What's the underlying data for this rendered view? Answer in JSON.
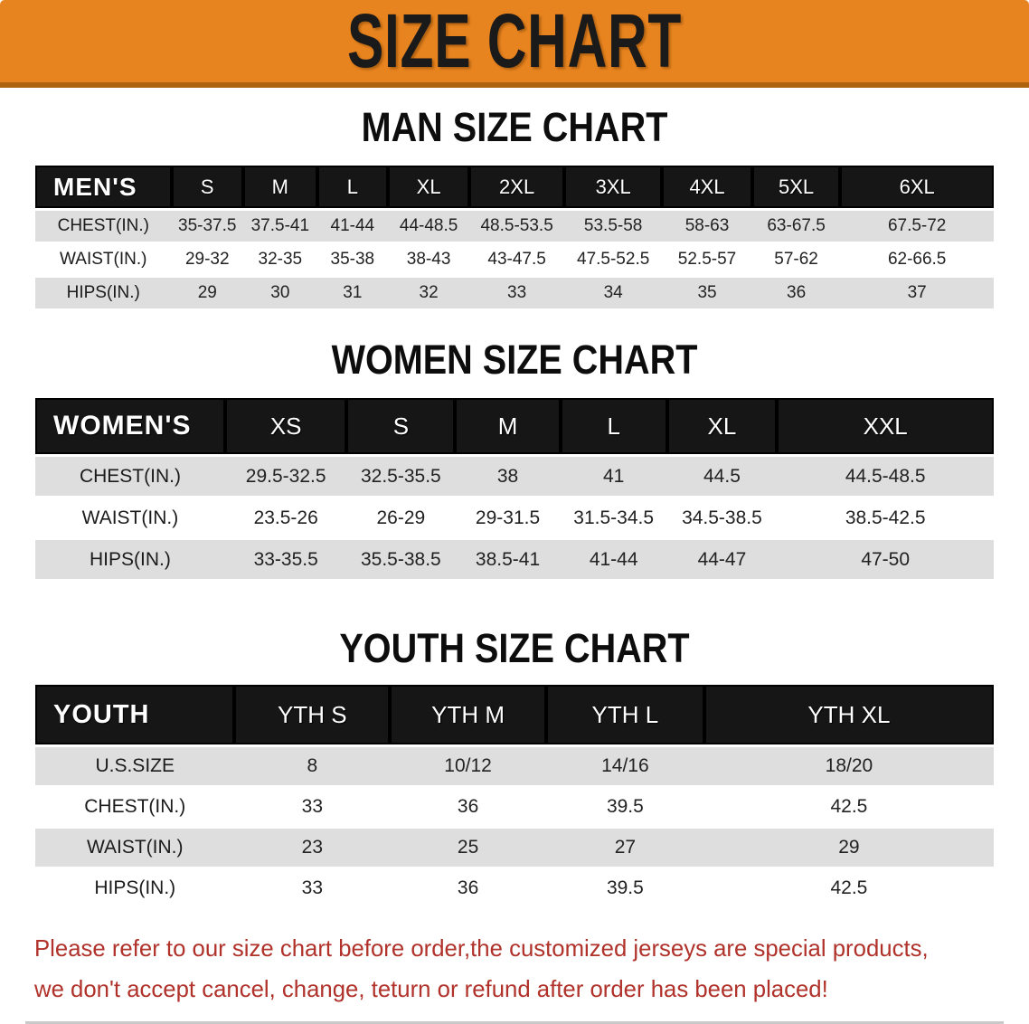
{
  "banner": {
    "title": "SIZE CHART",
    "bg_color": "#E8841F",
    "edge_color": "#AE6310",
    "text_color": "#1a1a1a"
  },
  "colors": {
    "header_bar": "#161616",
    "header_text": "#FFFFFF",
    "row_gray": "#DEDEDE",
    "row_white": "#FFFFFF",
    "disclaimer_red": "#B0322A"
  },
  "sections": [
    {
      "key": "men",
      "heading": "MAN SIZE CHART",
      "header_label": "MEN'S",
      "columns": [
        "S",
        "M",
        "L",
        "XL",
        "2XL",
        "3XL",
        "4XL",
        "5XL",
        "6XL"
      ],
      "rows": [
        {
          "label": "CHEST(IN.)",
          "values": [
            "35-37.5",
            "37.5-41",
            "41-44",
            "44-48.5",
            "48.5-53.5",
            "53.5-58",
            "58-63",
            "63-67.5",
            "67.5-72"
          ]
        },
        {
          "label": "WAIST(IN.)",
          "values": [
            "29-32",
            "32-35",
            "35-38",
            "38-43",
            "43-47.5",
            "47.5-52.5",
            "52.5-57",
            "57-62",
            "62-66.5"
          ]
        },
        {
          "label": "HIPS(IN.)",
          "values": [
            "29",
            "30",
            "31",
            "32",
            "33",
            "34",
            "35",
            "36",
            "37"
          ]
        }
      ]
    },
    {
      "key": "women",
      "heading": "WOMEN SIZE CHART",
      "header_label": "WOMEN'S",
      "columns": [
        "XS",
        "S",
        "M",
        "L",
        "XL",
        "XXL"
      ],
      "rows": [
        {
          "label": "CHEST(IN.)",
          "values": [
            "29.5-32.5",
            "32.5-35.5",
            "38",
            "41",
            "44.5",
            "44.5-48.5"
          ]
        },
        {
          "label": "WAIST(IN.)",
          "values": [
            "23.5-26",
            "26-29",
            "29-31.5",
            "31.5-34.5",
            "34.5-38.5",
            "38.5-42.5"
          ]
        },
        {
          "label": "HIPS(IN.)",
          "values": [
            "33-35.5",
            "35.5-38.5",
            "38.5-41",
            "41-44",
            "44-47",
            "47-50"
          ]
        }
      ]
    },
    {
      "key": "youth",
      "heading": "YOUTH SIZE CHART",
      "header_label": "YOUTH",
      "columns": [
        "YTH S",
        "YTH M",
        "YTH L",
        "YTH XL"
      ],
      "rows": [
        {
          "label": "U.S.SIZE",
          "values": [
            "8",
            "10/12",
            "14/16",
            "18/20"
          ]
        },
        {
          "label": "CHEST(IN.)",
          "values": [
            "33",
            "36",
            "39.5",
            "42.5"
          ]
        },
        {
          "label": "WAIST(IN.)",
          "values": [
            "23",
            "25",
            "27",
            "29"
          ]
        },
        {
          "label": "HIPS(IN.)",
          "values": [
            "33",
            "36",
            "39.5",
            "42.5"
          ]
        }
      ]
    }
  ],
  "disclaimer": {
    "line1": "Please refer to our size chart before order,the customized jerseys are special products,",
    "line2": "we don't accept cancel, change, teturn or refund after order has been placed!"
  }
}
